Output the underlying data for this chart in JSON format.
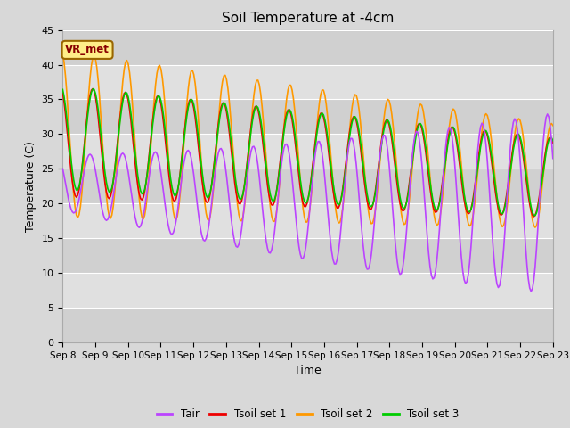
{
  "title": "Soil Temperature at -4cm",
  "xlabel": "Time",
  "ylabel": "Temperature (C)",
  "ylim": [
    0,
    45
  ],
  "tick_labels": [
    "Sep 8",
    "Sep 9",
    "Sep 10",
    "Sep 11",
    "Sep 12",
    "Sep 13",
    "Sep 14",
    "Sep 15",
    "Sep 16",
    "Sep 17",
    "Sep 18",
    "Sep 19",
    "Sep 20",
    "Sep 21",
    "Sep 22",
    "Sep 23"
  ],
  "colors": {
    "Tair": "#bb44ff",
    "Tsoil_set1": "#ee0000",
    "Tsoil_set2": "#ff9900",
    "Tsoil_set3": "#00cc00"
  },
  "annotation": "VR_met",
  "bg_color": "#d8d8d8",
  "legend_labels": [
    "Tair",
    "Tsoil set 1",
    "Tsoil set 2",
    "Tsoil set 3"
  ],
  "band_colors": [
    "#d8d8d8",
    "#e8e8e8"
  ],
  "yticks": [
    0,
    5,
    10,
    15,
    20,
    25,
    30,
    35,
    40,
    45
  ]
}
